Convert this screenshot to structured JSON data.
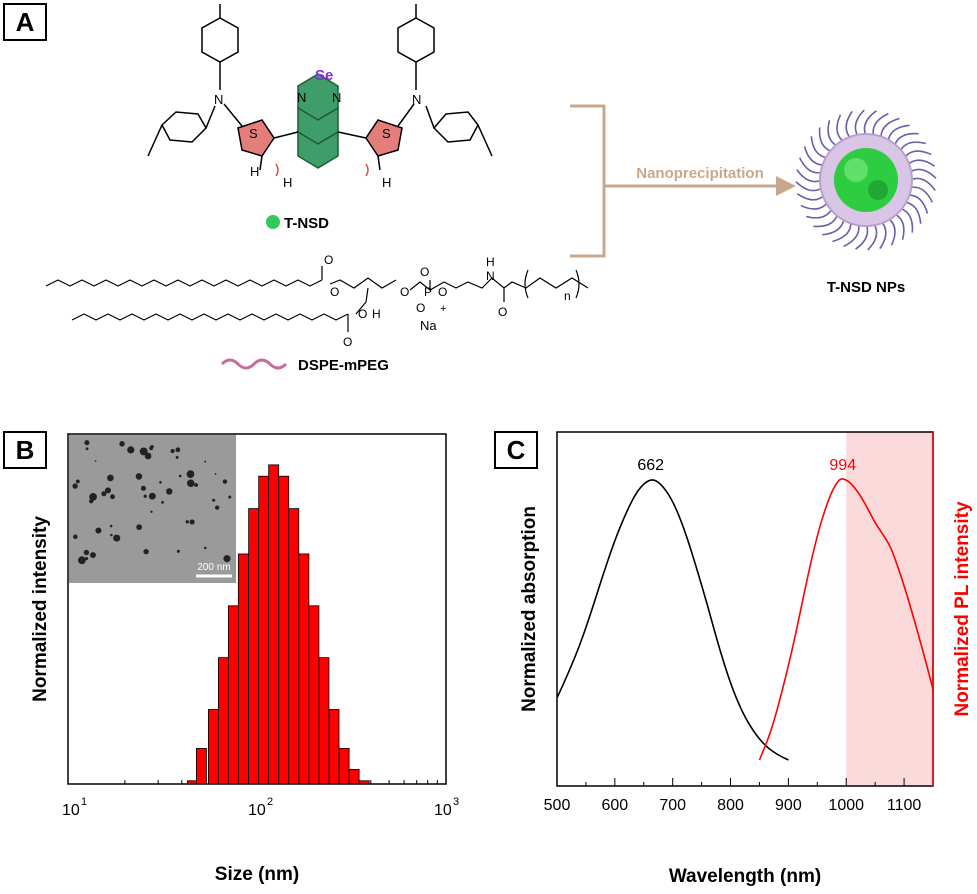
{
  "panel_labels": {
    "a": "A",
    "b": "B",
    "c": "C"
  },
  "panel_a": {
    "atom_se": "Se",
    "atom_n1": "N",
    "atom_n2": "N",
    "atom_n_left": "N",
    "atom_n_right": "N",
    "atom_s_left": "S",
    "atom_s_right": "S",
    "atom_h_left": "H",
    "atom_h_mid": "H",
    "atom_h_right": "H",
    "molecule_label": "T-NSD",
    "lipid_atoms": {
      "o1": "O",
      "o2": "O",
      "o3": "O",
      "o4": "O",
      "o5": "O",
      "o6": "O",
      "o7": "O",
      "o8": "O",
      "o9": "O",
      "p": "P",
      "h": "H",
      "nh": "H",
      "n": "N",
      "na": "Na",
      "plus": "+",
      "sub_n": "n"
    },
    "lipid_label": "DSPE-mPEG",
    "arrow_label": "Nanoprecipitation",
    "product_label": "T-NSD NPs",
    "colors": {
      "benzo": "#2f8f5a",
      "thiophene": "#c0392b",
      "arrow": "#c8a88c",
      "np_core": "#2ecc40",
      "np_shell": "#7a6fb0"
    }
  },
  "chart_data": [
    {
      "type": "bar",
      "panel": "B",
      "xscale": "log",
      "xlim": [
        10,
        1000
      ],
      "xlabel": "Size (nm)",
      "ylabel": "Normalized intensity",
      "xtick_labels": [
        {
          "base": "10",
          "exp": "1"
        },
        {
          "base": "10",
          "exp": "2"
        },
        {
          "base": "10",
          "exp": "3"
        }
      ],
      "bins": [
        {
          "x": 45.5,
          "y": 0.01
        },
        {
          "x": 50.8,
          "y": 0.11
        },
        {
          "x": 58.8,
          "y": 0.23
        },
        {
          "x": 66.4,
          "y": 0.39
        },
        {
          "x": 75.0,
          "y": 0.55
        },
        {
          "x": 84.7,
          "y": 0.71
        },
        {
          "x": 96.0,
          "y": 0.85
        },
        {
          "x": 108.5,
          "y": 0.95
        },
        {
          "x": 122.5,
          "y": 0.985
        },
        {
          "x": 138.5,
          "y": 0.95
        },
        {
          "x": 156.5,
          "y": 0.85
        },
        {
          "x": 177.0,
          "y": 0.71
        },
        {
          "x": 200.0,
          "y": 0.55
        },
        {
          "x": 226.0,
          "y": 0.39
        },
        {
          "x": 255.5,
          "y": 0.23
        },
        {
          "x": 289.0,
          "y": 0.11
        },
        {
          "x": 326.5,
          "y": 0.045
        },
        {
          "x": 369.0,
          "y": 0.01
        }
      ],
      "color": "#ff0000",
      "inset": {
        "scale_label": "200 nm"
      }
    },
    {
      "type": "line",
      "panel": "C",
      "xlim": [
        500,
        1150
      ],
      "xticks": [
        500,
        600,
        700,
        800,
        900,
        1000,
        1100
      ],
      "xlabel": "Wavelength (nm)",
      "ylabel_left": "Normalized absorption",
      "ylabel_right": "Normalized PL intensity",
      "shaded_region": [
        1000,
        1150
      ],
      "shade_color": "#fad9da",
      "series": [
        {
          "color": "#000000",
          "peak_label": "662",
          "x": [
            500,
            520,
            540,
            560,
            580,
            600,
            620,
            640,
            662,
            680,
            700,
            720,
            740,
            760,
            780,
            800,
            820,
            840,
            860,
            880,
            900
          ],
          "y": [
            0.22,
            0.31,
            0.41,
            0.53,
            0.66,
            0.78,
            0.88,
            0.96,
            1.0,
            0.98,
            0.92,
            0.82,
            0.69,
            0.55,
            0.4,
            0.27,
            0.17,
            0.1,
            0.05,
            0.02,
            0.0
          ]
        },
        {
          "color": "#ff0000",
          "peak_label": "994",
          "x": [
            850,
            870,
            890,
            910,
            930,
            950,
            970,
            985,
            994,
            1010,
            1030,
            1050,
            1070,
            1080,
            1100,
            1120,
            1140,
            1150
          ],
          "y": [
            0.0,
            0.1,
            0.25,
            0.42,
            0.62,
            0.8,
            0.93,
            0.99,
            1.0,
            0.98,
            0.92,
            0.84,
            0.78,
            0.74,
            0.62,
            0.48,
            0.33,
            0.25
          ]
        }
      ]
    }
  ]
}
